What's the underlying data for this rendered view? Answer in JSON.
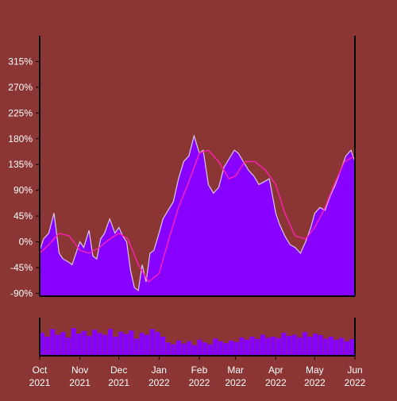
{
  "colors": {
    "background": "#8b3535",
    "area_fill": "#8800ff",
    "price_line": "#d8c8ee",
    "moving_average": "#ff1fb4",
    "volume_fill": "#8800ff",
    "axis": "#000000"
  },
  "chart_data": {
    "type": "area",
    "grid": false,
    "legend": "none",
    "y_ticks": [
      "315%",
      "270%",
      "225%",
      "180%",
      "135%",
      "90%",
      "45%",
      "0%",
      "-45%",
      "-90%"
    ],
    "y_tick_values": [
      315,
      270,
      225,
      180,
      135,
      90,
      45,
      0,
      -45,
      -90
    ],
    "ylim": [
      -95,
      360
    ],
    "x_ticks": [
      {
        "month": "Oct",
        "year": "2021",
        "date": "2021-10-01"
      },
      {
        "month": "Nov",
        "year": "2021",
        "date": "2021-11-01"
      },
      {
        "month": "Dec",
        "year": "2021",
        "date": "2021-12-01"
      },
      {
        "month": "Jan",
        "year": "2022",
        "date": "2022-01-01"
      },
      {
        "month": "Feb",
        "year": "2022",
        "date": "2022-02-01"
      },
      {
        "month": "Mar",
        "year": "2022",
        "date": "2022-03-01"
      },
      {
        "month": "Apr",
        "year": "2022",
        "date": "2022-04-01"
      },
      {
        "month": "May",
        "year": "2022",
        "date": "2022-05-01"
      },
      {
        "month": "Jun",
        "year": "2022",
        "date": "2022-06-01"
      }
    ],
    "xlim": [
      "2021-10-01",
      "2022-06-01"
    ],
    "series": [
      {
        "type": "area",
        "x": [
          "2021-10-01",
          "2021-10-04",
          "2021-10-08",
          "2021-10-12",
          "2021-10-16",
          "2021-10-19",
          "2021-10-23",
          "2021-10-26",
          "2021-10-29",
          "2021-11-01",
          "2021-11-04",
          "2021-11-08",
          "2021-11-11",
          "2021-11-14",
          "2021-11-17",
          "2021-11-20",
          "2021-11-24",
          "2021-11-28",
          "2021-12-01",
          "2021-12-04",
          "2021-12-07",
          "2021-12-10",
          "2021-12-13",
          "2021-12-16",
          "2021-12-19",
          "2021-12-22",
          "2021-12-25",
          "2021-12-28",
          "2022-01-01",
          "2022-01-04",
          "2022-01-08",
          "2022-01-12",
          "2022-01-16",
          "2022-01-20",
          "2022-01-24",
          "2022-01-28",
          "2022-02-01",
          "2022-02-04",
          "2022-02-08",
          "2022-02-12",
          "2022-02-16",
          "2022-02-20",
          "2022-02-24",
          "2022-02-28",
          "2022-03-03",
          "2022-03-07",
          "2022-03-11",
          "2022-03-15",
          "2022-03-19",
          "2022-03-23",
          "2022-03-27",
          "2022-04-01",
          "2022-04-04",
          "2022-04-08",
          "2022-04-12",
          "2022-04-16",
          "2022-04-20",
          "2022-04-24",
          "2022-04-28",
          "2022-05-01",
          "2022-05-05",
          "2022-05-09",
          "2022-05-13",
          "2022-05-17",
          "2022-05-21",
          "2022-05-25",
          "2022-05-29",
          "2022-06-01"
        ],
        "y": [
          -15,
          5,
          15,
          50,
          -20,
          -30,
          -35,
          -40,
          -20,
          0,
          -10,
          20,
          -25,
          -30,
          5,
          15,
          40,
          15,
          25,
          10,
          0,
          -50,
          -80,
          -85,
          -40,
          -70,
          -20,
          -15,
          15,
          40,
          55,
          70,
          110,
          140,
          150,
          185,
          155,
          160,
          100,
          85,
          95,
          130,
          145,
          160,
          155,
          140,
          125,
          115,
          100,
          105,
          110,
          50,
          30,
          10,
          -5,
          -10,
          -20,
          0,
          25,
          50,
          60,
          55,
          80,
          100,
          125,
          150,
          160,
          140
        ]
      },
      {
        "type": "line",
        "x": [
          "2021-10-01",
          "2021-10-08",
          "2021-10-16",
          "2021-10-24",
          "2021-11-01",
          "2021-11-08",
          "2021-11-16",
          "2021-11-24",
          "2021-12-01",
          "2021-12-08",
          "2021-12-16",
          "2021-12-24",
          "2022-01-01",
          "2022-01-08",
          "2022-01-16",
          "2022-01-24",
          "2022-02-01",
          "2022-02-08",
          "2022-02-16",
          "2022-02-24",
          "2022-03-01",
          "2022-03-08",
          "2022-03-16",
          "2022-03-24",
          "2022-04-01",
          "2022-04-08",
          "2022-04-16",
          "2022-04-24",
          "2022-05-01",
          "2022-05-08",
          "2022-05-16",
          "2022-05-24",
          "2022-06-01"
        ],
        "y": [
          -20,
          -5,
          15,
          10,
          -15,
          -20,
          -10,
          5,
          15,
          5,
          -40,
          -70,
          -55,
          0,
          60,
          105,
          155,
          160,
          140,
          110,
          115,
          140,
          140,
          125,
          100,
          50,
          10,
          5,
          25,
          55,
          100,
          140,
          150
        ]
      }
    ],
    "volume": {
      "type": "bar",
      "relative_heights": [
        0.6,
        0.5,
        0.7,
        0.55,
        0.62,
        0.48,
        0.72,
        0.58,
        0.65,
        0.52,
        0.68,
        0.6,
        0.55,
        0.7,
        0.5,
        0.63,
        0.57,
        0.66,
        0.45,
        0.6,
        0.55,
        0.7,
        0.62,
        0.5,
        0.35,
        0.3,
        0.4,
        0.32,
        0.38,
        0.28,
        0.42,
        0.35,
        0.3,
        0.45,
        0.38,
        0.33,
        0.4,
        0.36,
        0.48,
        0.42,
        0.5,
        0.44,
        0.55,
        0.47,
        0.5,
        0.46,
        0.6,
        0.52,
        0.55,
        0.48,
        0.62,
        0.5,
        0.58,
        0.54,
        0.45,
        0.5,
        0.42,
        0.47,
        0.38,
        0.44
      ]
    }
  }
}
